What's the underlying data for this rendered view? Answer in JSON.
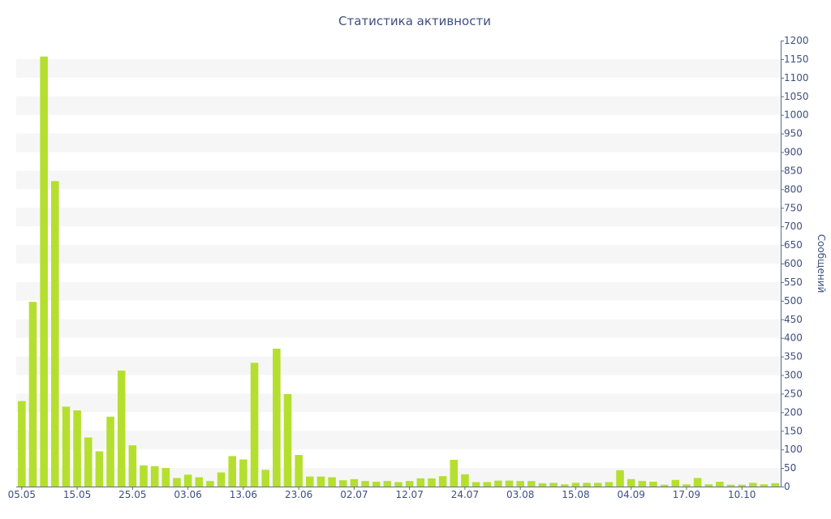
{
  "chart_data": {
    "type": "bar",
    "title": "Статистика активности",
    "ylabel": "Сообщений",
    "xlabel": "",
    "ylim": [
      0,
      1200
    ],
    "y_ticks": [
      0,
      50,
      100,
      150,
      200,
      250,
      300,
      350,
      400,
      450,
      500,
      550,
      600,
      650,
      700,
      750,
      800,
      850,
      900,
      950,
      1000,
      1050,
      1100,
      1150,
      1200
    ],
    "x_tick_labels": [
      "05.05",
      "15.05",
      "25.05",
      "03.06",
      "13.06",
      "23.06",
      "02.07",
      "12.07",
      "24.07",
      "03.08",
      "15.08",
      "04.09",
      "17.09",
      "10.10"
    ],
    "x_tick_bar_index": [
      0,
      5,
      10,
      15,
      20,
      25,
      30,
      35,
      40,
      45,
      50,
      55,
      60,
      65
    ],
    "bar_color": "#b5df2f",
    "axis_color": "#3e4f80",
    "grid": "horizontal-bands",
    "y_axis_position": "right",
    "values": [
      230,
      497,
      1157,
      822,
      215,
      205,
      132,
      95,
      188,
      312,
      111,
      57,
      55,
      50,
      23,
      32,
      25,
      15,
      38,
      82,
      73,
      333,
      45,
      371,
      249,
      85,
      27,
      27,
      25,
      17,
      20,
      15,
      13,
      15,
      12,
      15,
      22,
      22,
      28,
      72,
      33,
      12,
      12,
      16,
      16,
      15,
      15,
      9,
      10,
      6,
      10,
      10,
      10,
      12,
      44,
      20,
      15,
      13,
      5,
      18,
      6,
      23,
      6,
      13,
      5,
      5,
      10,
      6,
      9
    ]
  }
}
